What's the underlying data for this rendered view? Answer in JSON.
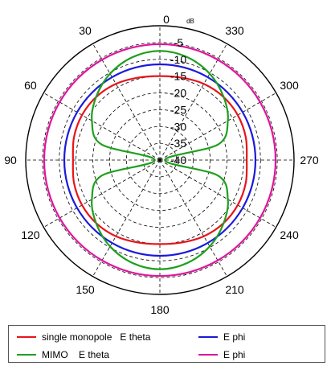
{
  "chart_data": {
    "type": "polar-line",
    "unit_label": "dB",
    "radial_tick_labels": [
      "0",
      "-5",
      "-10",
      "-15",
      "-20",
      "-25",
      "-30",
      "-35",
      "-40"
    ],
    "radial_range": [
      -40,
      0
    ],
    "angle_tick_labels": [
      "0",
      "30",
      "60",
      "90",
      "120",
      "150",
      "180",
      "210",
      "240",
      "270",
      "300",
      "330"
    ],
    "angular_direction": "counterclockwise",
    "zero_location": "top",
    "grid": true,
    "legend_position": "bottom",
    "theta_deg": [
      0,
      15,
      30,
      45,
      60,
      75,
      90,
      105,
      120,
      135,
      150,
      165,
      180,
      195,
      210,
      225,
      240,
      255,
      270,
      285,
      300,
      315,
      330,
      345
    ],
    "series": [
      {
        "name": "single monopole   E theta",
        "color": "#e8141c",
        "values": [
          -15,
          -14.6,
          -13.8,
          -13.3,
          -13.2,
          -13.5,
          -14.1,
          -13.5,
          -13.2,
          -13.3,
          -13.8,
          -14.6,
          -15,
          -14.6,
          -13.8,
          -13.3,
          -13.2,
          -13.5,
          -14.1,
          -13.5,
          -13.2,
          -13.3,
          -13.8,
          -14.6
        ]
      },
      {
        "name": "E phi",
        "color": "#1a1adc",
        "values": [
          -11.5,
          -11.5,
          -11.5,
          -11.5,
          -11.5,
          -11.5,
          -11.5,
          -11.5,
          -11.5,
          -11.5,
          -11.5,
          -11.5,
          -11.5,
          -11.5,
          -11.5,
          -11.5,
          -11.5,
          -11.5,
          -11.5,
          -11.5,
          -11.5,
          -11.5,
          -11.5,
          -11.5
        ]
      },
      {
        "name": "MIMO    E theta",
        "color": "#1ea01e",
        "values": [
          -7.5,
          -8.3,
          -10.3,
          -13.2,
          -16.6,
          -22,
          -38.5,
          -22,
          -16.6,
          -13.2,
          -10.3,
          -8.3,
          -7.5,
          -8.3,
          -10.3,
          -13.2,
          -16.6,
          -22,
          -38.5,
          -22,
          -16.6,
          -13.2,
          -10.3,
          -8.3
        ]
      },
      {
        "name": "E phi",
        "color": "#e0149c",
        "values": [
          -5.5,
          -5.5,
          -5.5,
          -5.5,
          -5.5,
          -5.5,
          -5.5,
          -5.5,
          -5.5,
          -5.5,
          -5.5,
          -5.5,
          -5.5,
          -5.5,
          -5.5,
          -5.5,
          -5.5,
          -5.5,
          -5.5,
          -5.5,
          -5.5,
          -5.5,
          -5.5,
          -5.5
        ]
      }
    ]
  }
}
